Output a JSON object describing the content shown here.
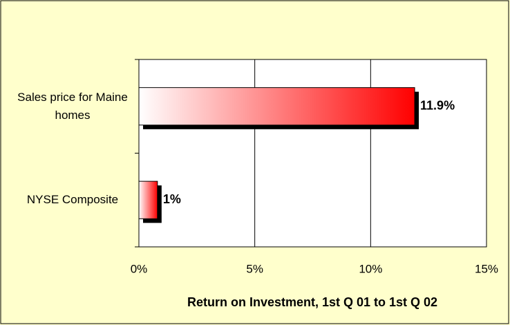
{
  "chart_data": {
    "type": "hbar",
    "x_label": "Return on Investment, 1st Q 01 to 1st Q 02",
    "categories": [
      "Sales price for Maine homes",
      "NYSE Composite"
    ],
    "values": [
      11.9,
      0.8
    ],
    "value_labels": [
      "11.9%",
      "1%"
    ],
    "color": "#ff0000",
    "xlim": [
      0,
      15
    ],
    "xticks": [
      {
        "value": 0,
        "label": "0%"
      },
      {
        "value": 5,
        "label": "5%"
      },
      {
        "value": 10,
        "label": "10%"
      },
      {
        "value": 15,
        "label": "15%"
      }
    ],
    "grid": true
  }
}
